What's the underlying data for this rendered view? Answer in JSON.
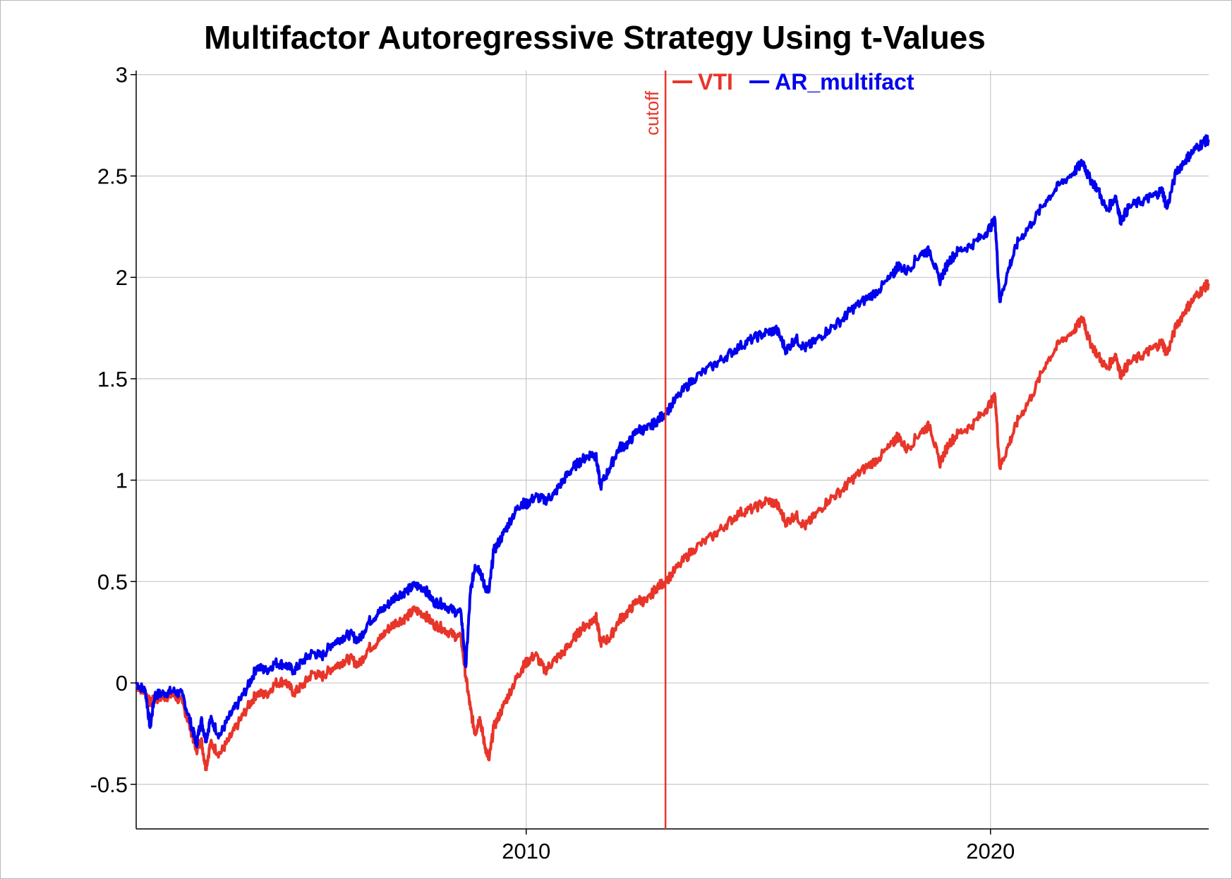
{
  "chart_data": {
    "type": "line",
    "title": "Multifactor Autoregressive Strategy Using t-Values",
    "xlabel": "",
    "ylabel": "",
    "xlim": [
      2001.6,
      2024.7
    ],
    "ylim": [
      -0.72,
      3.02
    ],
    "x_ticks": [
      {
        "value": 2010,
        "label": "2010"
      },
      {
        "value": 2020,
        "label": "2020"
      }
    ],
    "y_ticks": [
      {
        "value": 3,
        "label": "3"
      },
      {
        "value": 2.5,
        "label": "2.5"
      },
      {
        "value": 2,
        "label": "2"
      },
      {
        "value": 1.5,
        "label": "1.5"
      },
      {
        "value": 1,
        "label": "1"
      },
      {
        "value": 0.5,
        "label": "0.5"
      },
      {
        "value": 0,
        "label": "0"
      },
      {
        "value": -0.5,
        "label": "-0.5"
      }
    ],
    "grid": true,
    "legend_position": "top",
    "annotations": [
      {
        "type": "vline",
        "x": 2013.0,
        "label": "cutoff",
        "color": "#e8352a"
      }
    ],
    "series": [
      {
        "name": "VTI",
        "color": "#e8352a",
        "points": [
          [
            2001.6,
            -0.01
          ],
          [
            2001.8,
            -0.05
          ],
          [
            2001.9,
            -0.1
          ],
          [
            2002.0,
            -0.08
          ],
          [
            2002.2,
            -0.07
          ],
          [
            2002.4,
            -0.06
          ],
          [
            2002.6,
            -0.1
          ],
          [
            2002.8,
            -0.25
          ],
          [
            2002.9,
            -0.33
          ],
          [
            2003.0,
            -0.28
          ],
          [
            2003.1,
            -0.42
          ],
          [
            2003.2,
            -0.3
          ],
          [
            2003.4,
            -0.35
          ],
          [
            2003.6,
            -0.28
          ],
          [
            2003.8,
            -0.2
          ],
          [
            2004.0,
            -0.12
          ],
          [
            2004.2,
            -0.05
          ],
          [
            2004.4,
            -0.06
          ],
          [
            2004.6,
            -0.0
          ],
          [
            2004.8,
            0.01
          ],
          [
            2005.0,
            -0.05
          ],
          [
            2005.2,
            -0.01
          ],
          [
            2005.4,
            0.05
          ],
          [
            2005.6,
            0.03
          ],
          [
            2005.8,
            0.07
          ],
          [
            2006.0,
            0.1
          ],
          [
            2006.2,
            0.12
          ],
          [
            2006.4,
            0.09
          ],
          [
            2006.6,
            0.17
          ],
          [
            2006.8,
            0.2
          ],
          [
            2007.0,
            0.26
          ],
          [
            2007.2,
            0.3
          ],
          [
            2007.4,
            0.32
          ],
          [
            2007.6,
            0.36
          ],
          [
            2007.8,
            0.34
          ],
          [
            2008.0,
            0.29
          ],
          [
            2008.2,
            0.27
          ],
          [
            2008.4,
            0.24
          ],
          [
            2008.6,
            0.22
          ],
          [
            2008.7,
            0.03
          ],
          [
            2008.8,
            -0.13
          ],
          [
            2008.9,
            -0.25
          ],
          [
            2009.0,
            -0.17
          ],
          [
            2009.1,
            -0.3
          ],
          [
            2009.2,
            -0.38
          ],
          [
            2009.3,
            -0.22
          ],
          [
            2009.5,
            -0.12
          ],
          [
            2009.7,
            -0.02
          ],
          [
            2009.9,
            0.07
          ],
          [
            2010.0,
            0.1
          ],
          [
            2010.2,
            0.14
          ],
          [
            2010.4,
            0.06
          ],
          [
            2010.6,
            0.11
          ],
          [
            2010.8,
            0.15
          ],
          [
            2011.0,
            0.21
          ],
          [
            2011.2,
            0.27
          ],
          [
            2011.4,
            0.3
          ],
          [
            2011.5,
            0.33
          ],
          [
            2011.6,
            0.2
          ],
          [
            2011.8,
            0.22
          ],
          [
            2012.0,
            0.31
          ],
          [
            2012.2,
            0.35
          ],
          [
            2012.4,
            0.41
          ],
          [
            2012.6,
            0.4
          ],
          [
            2012.8,
            0.47
          ],
          [
            2013.0,
            0.5
          ],
          [
            2013.3,
            0.58
          ],
          [
            2013.6,
            0.66
          ],
          [
            2014.0,
            0.72
          ],
          [
            2014.3,
            0.78
          ],
          [
            2014.6,
            0.84
          ],
          [
            2014.9,
            0.86
          ],
          [
            2015.2,
            0.9
          ],
          [
            2015.4,
            0.88
          ],
          [
            2015.6,
            0.79
          ],
          [
            2015.8,
            0.83
          ],
          [
            2016.0,
            0.77
          ],
          [
            2016.2,
            0.82
          ],
          [
            2016.5,
            0.9
          ],
          [
            2016.8,
            0.95
          ],
          [
            2017.0,
            1.0
          ],
          [
            2017.3,
            1.06
          ],
          [
            2017.6,
            1.11
          ],
          [
            2017.9,
            1.18
          ],
          [
            2018.0,
            1.22
          ],
          [
            2018.2,
            1.15
          ],
          [
            2018.5,
            1.24
          ],
          [
            2018.7,
            1.27
          ],
          [
            2018.9,
            1.08
          ],
          [
            2019.1,
            1.18
          ],
          [
            2019.3,
            1.23
          ],
          [
            2019.6,
            1.27
          ],
          [
            2019.9,
            1.35
          ],
          [
            2020.1,
            1.41
          ],
          [
            2020.2,
            1.06
          ],
          [
            2020.4,
            1.18
          ],
          [
            2020.6,
            1.3
          ],
          [
            2020.9,
            1.42
          ],
          [
            2021.2,
            1.58
          ],
          [
            2021.5,
            1.68
          ],
          [
            2021.8,
            1.74
          ],
          [
            2022.0,
            1.8
          ],
          [
            2022.1,
            1.7
          ],
          [
            2022.3,
            1.62
          ],
          [
            2022.5,
            1.55
          ],
          [
            2022.7,
            1.62
          ],
          [
            2022.8,
            1.52
          ],
          [
            2023.0,
            1.58
          ],
          [
            2023.3,
            1.62
          ],
          [
            2023.5,
            1.65
          ],
          [
            2023.7,
            1.68
          ],
          [
            2023.8,
            1.62
          ],
          [
            2024.0,
            1.76
          ],
          [
            2024.2,
            1.84
          ],
          [
            2024.4,
            1.9
          ],
          [
            2024.6,
            1.95
          ],
          [
            2024.7,
            1.97
          ]
        ]
      },
      {
        "name": "AR_multifact",
        "color": "#0000ee",
        "points": [
          [
            2001.6,
            0.0
          ],
          [
            2001.8,
            -0.04
          ],
          [
            2001.9,
            -0.22
          ],
          [
            2002.0,
            -0.06
          ],
          [
            2002.2,
            -0.05
          ],
          [
            2002.4,
            -0.04
          ],
          [
            2002.6,
            -0.06
          ],
          [
            2002.8,
            -0.22
          ],
          [
            2002.9,
            -0.3
          ],
          [
            2003.0,
            -0.18
          ],
          [
            2003.1,
            -0.28
          ],
          [
            2003.2,
            -0.18
          ],
          [
            2003.4,
            -0.26
          ],
          [
            2003.6,
            -0.17
          ],
          [
            2003.8,
            -0.1
          ],
          [
            2004.0,
            -0.02
          ],
          [
            2004.2,
            0.08
          ],
          [
            2004.4,
            0.06
          ],
          [
            2004.6,
            0.1
          ],
          [
            2004.8,
            0.09
          ],
          [
            2005.0,
            0.06
          ],
          [
            2005.2,
            0.11
          ],
          [
            2005.4,
            0.15
          ],
          [
            2005.6,
            0.13
          ],
          [
            2005.8,
            0.19
          ],
          [
            2006.0,
            0.22
          ],
          [
            2006.2,
            0.24
          ],
          [
            2006.4,
            0.21
          ],
          [
            2006.6,
            0.3
          ],
          [
            2006.8,
            0.34
          ],
          [
            2007.0,
            0.38
          ],
          [
            2007.2,
            0.43
          ],
          [
            2007.4,
            0.45
          ],
          [
            2007.6,
            0.48
          ],
          [
            2007.8,
            0.47
          ],
          [
            2008.0,
            0.4
          ],
          [
            2008.2,
            0.39
          ],
          [
            2008.4,
            0.36
          ],
          [
            2008.6,
            0.34
          ],
          [
            2008.7,
            0.08
          ],
          [
            2008.8,
            0.45
          ],
          [
            2008.9,
            0.58
          ],
          [
            2009.0,
            0.56
          ],
          [
            2009.1,
            0.48
          ],
          [
            2009.2,
            0.45
          ],
          [
            2009.3,
            0.65
          ],
          [
            2009.5,
            0.73
          ],
          [
            2009.7,
            0.82
          ],
          [
            2009.9,
            0.89
          ],
          [
            2010.0,
            0.88
          ],
          [
            2010.2,
            0.92
          ],
          [
            2010.4,
            0.9
          ],
          [
            2010.6,
            0.93
          ],
          [
            2010.8,
            1.0
          ],
          [
            2011.0,
            1.06
          ],
          [
            2011.2,
            1.1
          ],
          [
            2011.4,
            1.13
          ],
          [
            2011.5,
            1.12
          ],
          [
            2011.6,
            0.97
          ],
          [
            2011.8,
            1.06
          ],
          [
            2012.0,
            1.16
          ],
          [
            2012.2,
            1.18
          ],
          [
            2012.4,
            1.25
          ],
          [
            2012.6,
            1.25
          ],
          [
            2012.8,
            1.29
          ],
          [
            2013.0,
            1.33
          ],
          [
            2013.3,
            1.42
          ],
          [
            2013.6,
            1.5
          ],
          [
            2014.0,
            1.56
          ],
          [
            2014.3,
            1.61
          ],
          [
            2014.6,
            1.66
          ],
          [
            2014.9,
            1.7
          ],
          [
            2015.2,
            1.73
          ],
          [
            2015.4,
            1.74
          ],
          [
            2015.6,
            1.64
          ],
          [
            2015.8,
            1.7
          ],
          [
            2016.0,
            1.65
          ],
          [
            2016.2,
            1.68
          ],
          [
            2016.5,
            1.74
          ],
          [
            2016.8,
            1.79
          ],
          [
            2017.0,
            1.84
          ],
          [
            2017.3,
            1.89
          ],
          [
            2017.6,
            1.94
          ],
          [
            2017.9,
            2.01
          ],
          [
            2018.0,
            2.06
          ],
          [
            2018.2,
            2.03
          ],
          [
            2018.5,
            2.12
          ],
          [
            2018.7,
            2.13
          ],
          [
            2018.9,
            1.98
          ],
          [
            2019.1,
            2.08
          ],
          [
            2019.3,
            2.13
          ],
          [
            2019.6,
            2.16
          ],
          [
            2019.9,
            2.22
          ],
          [
            2020.1,
            2.28
          ],
          [
            2020.2,
            1.88
          ],
          [
            2020.4,
            2.05
          ],
          [
            2020.6,
            2.18
          ],
          [
            2020.9,
            2.27
          ],
          [
            2021.2,
            2.38
          ],
          [
            2021.5,
            2.46
          ],
          [
            2021.8,
            2.52
          ],
          [
            2022.0,
            2.57
          ],
          [
            2022.1,
            2.5
          ],
          [
            2022.3,
            2.44
          ],
          [
            2022.5,
            2.33
          ],
          [
            2022.7,
            2.4
          ],
          [
            2022.8,
            2.28
          ],
          [
            2023.0,
            2.35
          ],
          [
            2023.3,
            2.38
          ],
          [
            2023.5,
            2.4
          ],
          [
            2023.7,
            2.43
          ],
          [
            2023.8,
            2.34
          ],
          [
            2024.0,
            2.52
          ],
          [
            2024.2,
            2.58
          ],
          [
            2024.4,
            2.63
          ],
          [
            2024.6,
            2.67
          ],
          [
            2024.7,
            2.68
          ]
        ]
      }
    ]
  }
}
